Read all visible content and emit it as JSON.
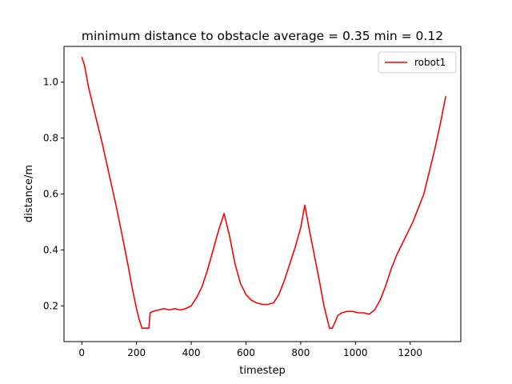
{
  "chart_data": {
    "type": "line",
    "title": "minimum distance to obstacle average = 0.35 min = 0.12",
    "xlabel": "timestep",
    "ylabel": "distance/m",
    "xlim": [
      -65,
      1385
    ],
    "ylim": [
      0.072,
      1.128
    ],
    "x_ticks": [
      0,
      200,
      400,
      600,
      800,
      1000,
      1200
    ],
    "y_ticks": [
      0.2,
      0.4,
      0.6,
      0.8,
      1.0
    ],
    "x_tick_labels": [
      "0",
      "200",
      "400",
      "600",
      "800",
      "1000",
      "1200"
    ],
    "y_tick_labels": [
      "0.2",
      "0.4",
      "0.6",
      "0.8",
      "1.0"
    ],
    "grid": false,
    "legend_position": "top-right",
    "series": [
      {
        "name": "robot1",
        "color": "#ff0000",
        "points": [
          [
            0,
            1.09
          ],
          [
            10,
            1.06
          ],
          [
            25,
            0.98
          ],
          [
            50,
            0.88
          ],
          [
            75,
            0.78
          ],
          [
            100,
            0.67
          ],
          [
            125,
            0.56
          ],
          [
            150,
            0.44
          ],
          [
            170,
            0.34
          ],
          [
            185,
            0.26
          ],
          [
            200,
            0.19
          ],
          [
            210,
            0.15
          ],
          [
            220,
            0.12
          ],
          [
            235,
            0.12
          ],
          [
            245,
            0.12
          ],
          [
            250,
            0.175
          ],
          [
            260,
            0.18
          ],
          [
            280,
            0.185
          ],
          [
            300,
            0.19
          ],
          [
            320,
            0.185
          ],
          [
            340,
            0.19
          ],
          [
            360,
            0.185
          ],
          [
            380,
            0.19
          ],
          [
            400,
            0.2
          ],
          [
            420,
            0.23
          ],
          [
            440,
            0.27
          ],
          [
            460,
            0.33
          ],
          [
            480,
            0.4
          ],
          [
            500,
            0.47
          ],
          [
            520,
            0.53
          ],
          [
            540,
            0.45
          ],
          [
            560,
            0.35
          ],
          [
            580,
            0.28
          ],
          [
            600,
            0.24
          ],
          [
            620,
            0.22
          ],
          [
            640,
            0.21
          ],
          [
            660,
            0.205
          ],
          [
            680,
            0.205
          ],
          [
            700,
            0.21
          ],
          [
            720,
            0.24
          ],
          [
            740,
            0.29
          ],
          [
            760,
            0.35
          ],
          [
            780,
            0.41
          ],
          [
            800,
            0.48
          ],
          [
            815,
            0.56
          ],
          [
            830,
            0.48
          ],
          [
            850,
            0.38
          ],
          [
            870,
            0.28
          ],
          [
            885,
            0.2
          ],
          [
            895,
            0.16
          ],
          [
            905,
            0.12
          ],
          [
            915,
            0.12
          ],
          [
            925,
            0.14
          ],
          [
            935,
            0.165
          ],
          [
            950,
            0.175
          ],
          [
            970,
            0.18
          ],
          [
            990,
            0.18
          ],
          [
            1010,
            0.175
          ],
          [
            1030,
            0.175
          ],
          [
            1050,
            0.17
          ],
          [
            1070,
            0.185
          ],
          [
            1090,
            0.22
          ],
          [
            1110,
            0.27
          ],
          [
            1130,
            0.33
          ],
          [
            1150,
            0.38
          ],
          [
            1170,
            0.42
          ],
          [
            1190,
            0.46
          ],
          [
            1210,
            0.5
          ],
          [
            1230,
            0.55
          ],
          [
            1250,
            0.6
          ],
          [
            1270,
            0.68
          ],
          [
            1290,
            0.76
          ],
          [
            1310,
            0.85
          ],
          [
            1320,
            0.9
          ],
          [
            1330,
            0.95
          ]
        ]
      }
    ]
  }
}
